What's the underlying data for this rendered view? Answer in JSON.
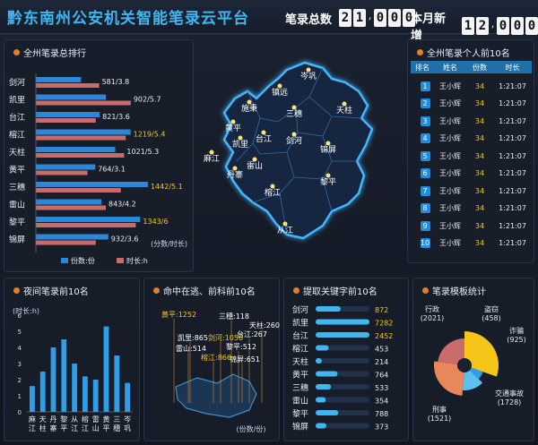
{
  "header": {
    "title": "黔东南州公安机关智能笔录云平台",
    "total_label": "笔录总数",
    "total_digits": [
      "2",
      "1",
      ",",
      "0",
      "0",
      "0"
    ],
    "month_label": "本月新增",
    "month_digits": [
      "1",
      "2",
      ",",
      "0",
      "0",
      "0"
    ]
  },
  "ranking_panel": {
    "title": "全州笔录总排行",
    "legend_count": "份数:份",
    "legend_time": "时长:h",
    "axis_note": "(分数/时长)"
  },
  "chart_data": [
    {
      "type": "bar",
      "orientation": "horizontal",
      "categories": [
        "剑河",
        "凯里",
        "台江",
        "榕江",
        "天柱",
        "黄平",
        "三穗",
        "雷山",
        "黎平",
        "锦屏"
      ],
      "series": [
        {
          "name": "份数:份",
          "values": [
            581,
            902,
            821,
            1219,
            1021,
            764,
            1442,
            843,
            1343,
            932
          ],
          "color": "#2e86d8"
        },
        {
          "name": "时长:h",
          "values": [
            3.8,
            5.7,
            3.6,
            5.4,
            5.3,
            3.1,
            5.1,
            4.2,
            6,
            3.6
          ],
          "color": "#c86b6b"
        }
      ],
      "data_labels": [
        "581/3.8",
        "902/5.7",
        "821/3.6",
        "1219/5.4",
        "1021/5.3",
        "764/3.1",
        "1442/5.1",
        "843/4.2",
        "1343/6",
        "932/3.6"
      ],
      "highlight": [
        3,
        6,
        8
      ]
    },
    {
      "type": "bar",
      "title": "夜间笔录前10名",
      "ylabel": "(时长:h)",
      "ylim": [
        0,
        6
      ],
      "yticks": [
        0,
        1,
        2,
        3,
        4,
        5,
        6
      ],
      "categories": [
        "麻江",
        "天柱",
        "丹寨",
        "黎平",
        "从江",
        "榕江",
        "雷山",
        "黄平",
        "三穗",
        "岑巩"
      ],
      "values": [
        1.6,
        2.5,
        4.0,
        4.5,
        3.0,
        2.2,
        2.0,
        5.3,
        3.5,
        1.8
      ]
    },
    {
      "type": "bar",
      "orientation": "horizontal",
      "title": "提取关键字前10名",
      "categories": [
        "剑河",
        "凯里",
        "台江",
        "榕江",
        "天柱",
        "黄平",
        "三穗",
        "雷山",
        "黎平",
        "锦屏"
      ],
      "values": [
        872,
        7282,
        2452,
        453,
        214,
        764,
        533,
        354,
        788,
        373
      ],
      "highlight": [
        0,
        1,
        2
      ]
    },
    {
      "type": "pie",
      "title": "笔录模板统计",
      "labels": [
        "行政",
        "盗窃",
        "诈骗",
        "交通事故",
        "刑事"
      ],
      "values": [
        2021,
        458,
        925,
        1728,
        1521
      ]
    }
  ],
  "map": {
    "regions": [
      "岑巩",
      "施秉",
      "镇远",
      "黄平",
      "三穗",
      "天柱",
      "凯里",
      "台江",
      "剑河",
      "锦屏",
      "麻江",
      "雷山",
      "丹寨",
      "榕江",
      "黎平",
      "从江"
    ]
  },
  "top10_panel": {
    "title": "全州笔录个人前10名",
    "columns": [
      "排名",
      "姓名",
      "份数",
      "时长"
    ],
    "rows": [
      {
        "rank": "1",
        "name": "王小辉",
        "count": "34",
        "time": "1:21:07"
      },
      {
        "rank": "2",
        "name": "王小辉",
        "count": "34",
        "time": "1:21:07"
      },
      {
        "rank": "3",
        "name": "王小辉",
        "count": "34",
        "time": "1:21:07"
      },
      {
        "rank": "4",
        "name": "王小辉",
        "count": "34",
        "time": "1:21:07"
      },
      {
        "rank": "5",
        "name": "王小辉",
        "count": "34",
        "time": "1:21:07"
      },
      {
        "rank": "6",
        "name": "王小辉",
        "count": "34",
        "time": "1:21:07"
      },
      {
        "rank": "7",
        "name": "王小辉",
        "count": "34",
        "time": "1:21:07"
      },
      {
        "rank": "8",
        "name": "王小辉",
        "count": "34",
        "time": "1:21:07"
      },
      {
        "rank": "9",
        "name": "王小辉",
        "count": "34",
        "time": "1:21:07"
      },
      {
        "rank": "10",
        "name": "王小辉",
        "count": "34",
        "time": "1:21:07"
      }
    ]
  },
  "hit_panel": {
    "title": "命中在逃、前科前10名",
    "labels": [
      "黄平:1252",
      "三穗:118",
      "天柱:260",
      "凯里:865",
      "剑河:1056",
      "台江:267",
      "雷山:514",
      "黎平:512",
      "锦屏:651",
      "榕江:866"
    ],
    "unit": "(份数/份)"
  },
  "night_panel": {
    "title": "夜间笔录前10名"
  },
  "keyword_panel": {
    "title": "提取关键字前10名"
  },
  "template_panel": {
    "title": "笔录模板统计"
  },
  "colors": {
    "accent": "#3fb6f0",
    "bar_blue": "#2e86d8",
    "bar_red": "#c86b6b",
    "highlight": "#f5c518",
    "orange": "#e67e22"
  }
}
